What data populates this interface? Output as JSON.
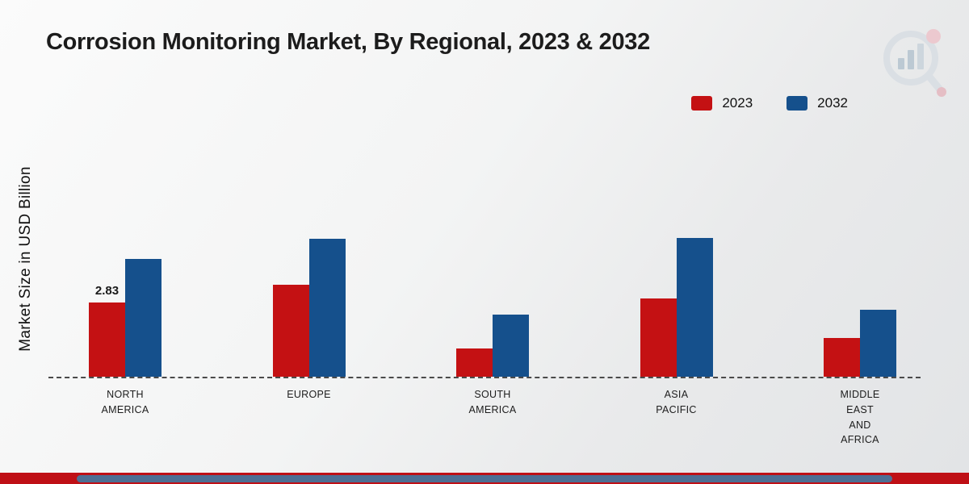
{
  "title": "Corrosion Monitoring Market, By Regional, 2023 & 2032",
  "y_axis_label": "Market Size in USD Billion",
  "logo_name": "market-research-future-logo",
  "colors": {
    "series_2023": "#c41113",
    "series_2032": "#15508c",
    "footer_red": "#bf1016",
    "footer_blue": "#4d6f94",
    "baseline": "#4a4a4a"
  },
  "chart_data": {
    "type": "bar",
    "title": "Corrosion Monitoring Market, By Regional, 2023 & 2032",
    "xlabel": "",
    "ylabel": "Market Size in USD Billion",
    "ylim": [
      0,
      6
    ],
    "grid": false,
    "legend_position": "top-right",
    "baseline_style": "dashed",
    "category_names": [
      "North America",
      "Europe",
      "South America",
      "Asia Pacific",
      "Middle East and Africa"
    ],
    "categories": [
      [
        "NORTH",
        "AMERICA"
      ],
      [
        "EUROPE"
      ],
      [
        "SOUTH",
        "AMERICA"
      ],
      [
        "ASIA",
        "PACIFIC"
      ],
      [
        "MIDDLE",
        "EAST",
        "AND",
        "AFRICA"
      ]
    ],
    "series": [
      {
        "name": "2023",
        "color": "#c41113",
        "values": [
          2.83,
          3.5,
          1.08,
          2.98,
          1.48
        ]
      },
      {
        "name": "2032",
        "color": "#15508c",
        "values": [
          4.5,
          5.26,
          2.37,
          5.29,
          2.55
        ]
      }
    ],
    "annotations": [
      {
        "text": "2.83",
        "category_index": 0,
        "series_index": 0
      }
    ]
  }
}
